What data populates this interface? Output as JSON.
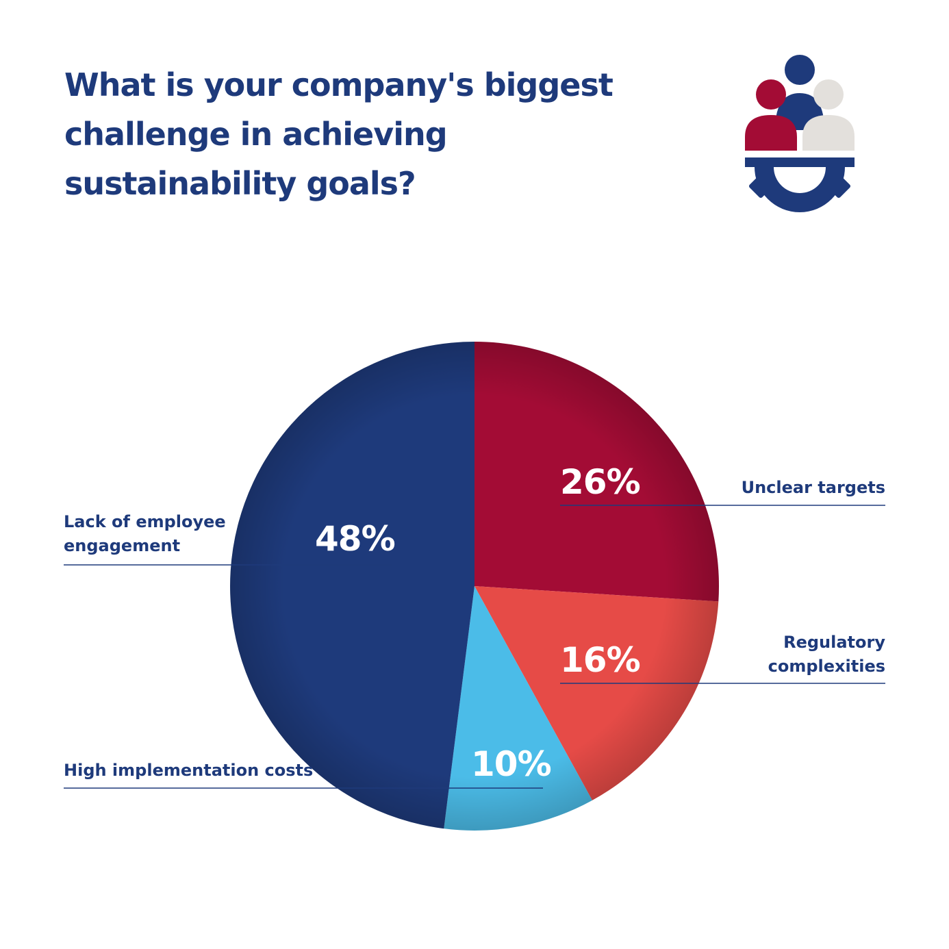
{
  "title": "What is your company's biggest challenge in achieving sustainability goals?",
  "logo": {
    "icon": "people-gear-icon",
    "colors": {
      "navy": "#1e3a7b",
      "red": "#a30c35",
      "grey": "#e3e0dc"
    }
  },
  "chart_data": {
    "type": "pie",
    "start_angle_deg": 0,
    "direction": "clockwise",
    "slices": [
      {
        "label_lines": [
          "Unclear targets"
        ],
        "value": 26,
        "value_label": "26%",
        "color": "#a30c35"
      },
      {
        "label_lines": [
          "Regulatory",
          "complexities"
        ],
        "value": 16,
        "value_label": "16%",
        "color": "#e64b47"
      },
      {
        "label_lines": [
          "High implementation costs"
        ],
        "value": 10,
        "value_label": "10%",
        "color": "#4bbce8"
      },
      {
        "label_lines": [
          "Lack of employee",
          "engagement"
        ],
        "value": 48,
        "value_label": "48%",
        "color": "#1e3a7b"
      }
    ],
    "legend": "none"
  }
}
